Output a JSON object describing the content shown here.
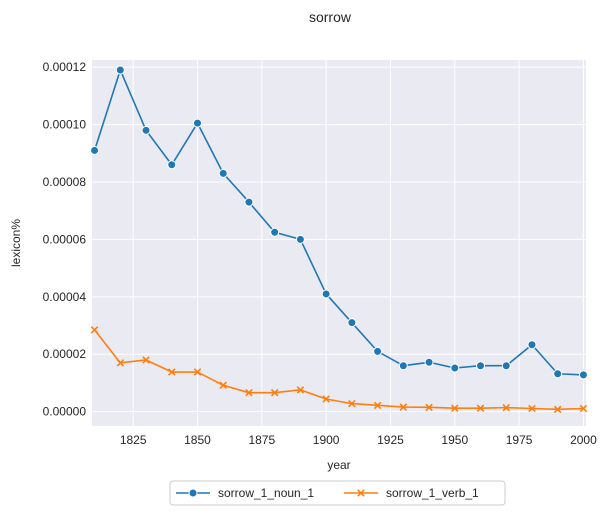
{
  "chart_data": {
    "type": "line",
    "title": "sorrow",
    "xlabel": "year",
    "ylabel": "lexicon%",
    "xlim": [
      1809,
      2001
    ],
    "ylim": [
      -5e-06,
      0.0001225
    ],
    "xticks": [
      1825,
      1850,
      1875,
      1900,
      1925,
      1950,
      1975,
      2000
    ],
    "xtick_labels": [
      "1825",
      "1850",
      "1875",
      "1900",
      "1925",
      "1950",
      "1975",
      "2000"
    ],
    "yticks": [
      0,
      2e-05,
      4e-05,
      6e-05,
      8e-05,
      0.0001,
      0.00012
    ],
    "ytick_labels": [
      "0.00000",
      "0.00002",
      "0.00004",
      "0.00006",
      "0.00008",
      "0.00010",
      "0.00012"
    ],
    "grid": true,
    "legend_position": "bottom-center",
    "x": [
      1810,
      1820,
      1830,
      1840,
      1850,
      1860,
      1870,
      1880,
      1890,
      1900,
      1910,
      1920,
      1930,
      1940,
      1950,
      1960,
      1970,
      1980,
      1990,
      2000
    ],
    "series": [
      {
        "name": "sorrow_1_noun_1",
        "color": "#1f77b4",
        "marker": "circle",
        "values": [
          9.1e-05,
          0.000119,
          9.8e-05,
          8.6e-05,
          0.0001005,
          8.3e-05,
          7.3e-05,
          6.25e-05,
          6e-05,
          4.1e-05,
          3.1e-05,
          2.1e-05,
          1.6e-05,
          1.72e-05,
          1.52e-05,
          1.6e-05,
          1.6e-05,
          2.33e-05,
          1.32e-05,
          1.28e-05
        ]
      },
      {
        "name": "sorrow_1_verb_1",
        "color": "#ff7f0e",
        "marker": "x",
        "values": [
          2.85e-05,
          1.7e-05,
          1.8e-05,
          1.38e-05,
          1.38e-05,
          9.2e-06,
          6.6e-06,
          6.6e-06,
          7.6e-06,
          4.4e-06,
          2.8e-06,
          2.2e-06,
          1.6e-06,
          1.5e-06,
          1.2e-06,
          1.2e-06,
          1.4e-06,
          1.1e-06,
          8e-07,
          1.1e-06
        ]
      }
    ]
  }
}
